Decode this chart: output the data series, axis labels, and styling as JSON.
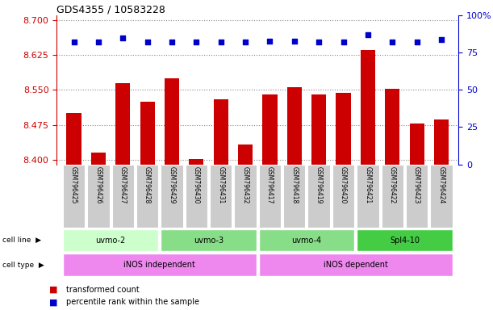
{
  "title": "GDS4355 / 10583228",
  "samples": [
    "GSM796425",
    "GSM796426",
    "GSM796427",
    "GSM796428",
    "GSM796429",
    "GSM796430",
    "GSM796431",
    "GSM796432",
    "GSM796417",
    "GSM796418",
    "GSM796419",
    "GSM796420",
    "GSM796421",
    "GSM796422",
    "GSM796423",
    "GSM796424"
  ],
  "transformed_count": [
    8.5,
    8.415,
    8.565,
    8.525,
    8.575,
    8.402,
    8.53,
    8.432,
    8.54,
    8.555,
    8.54,
    8.543,
    8.635,
    8.553,
    8.478,
    8.487
  ],
  "percentile_rank": [
    82,
    82,
    85,
    82,
    82,
    82,
    82,
    82,
    83,
    83,
    82,
    82,
    87,
    82,
    82,
    84
  ],
  "ylim_left": [
    8.39,
    8.71
  ],
  "ylim_right": [
    0,
    100
  ],
  "yticks_left": [
    8.4,
    8.475,
    8.55,
    8.625,
    8.7
  ],
  "yticks_right": [
    0,
    25,
    50,
    75,
    100
  ],
  "bar_color": "#cc0000",
  "dot_color": "#0000cc",
  "cell_line_groups": [
    {
      "label": "uvmo-2",
      "start": 0,
      "end": 3,
      "color": "#ccffcc"
    },
    {
      "label": "uvmo-3",
      "start": 4,
      "end": 7,
      "color": "#88dd88"
    },
    {
      "label": "uvmo-4",
      "start": 8,
      "end": 11,
      "color": "#88dd88"
    },
    {
      "label": "Spl4-10",
      "start": 12,
      "end": 15,
      "color": "#44cc44"
    }
  ],
  "cell_type_groups": [
    {
      "label": "iNOS independent",
      "start": 0,
      "end": 7,
      "color": "#ee88ee"
    },
    {
      "label": "iNOS dependent",
      "start": 8,
      "end": 15,
      "color": "#ee88ee"
    }
  ],
  "legend_transformed": "transformed count",
  "legend_percentile": "percentile rank within the sample",
  "row_label_cell_line": "cell line",
  "row_label_cell_type": "cell type",
  "dotted_line_color": "#888888",
  "background_color": "#ffffff",
  "left_axis_color": "#cc0000",
  "right_axis_color": "#0000cc",
  "sample_box_color": "#cccccc",
  "border_color": "#aaaaaa"
}
